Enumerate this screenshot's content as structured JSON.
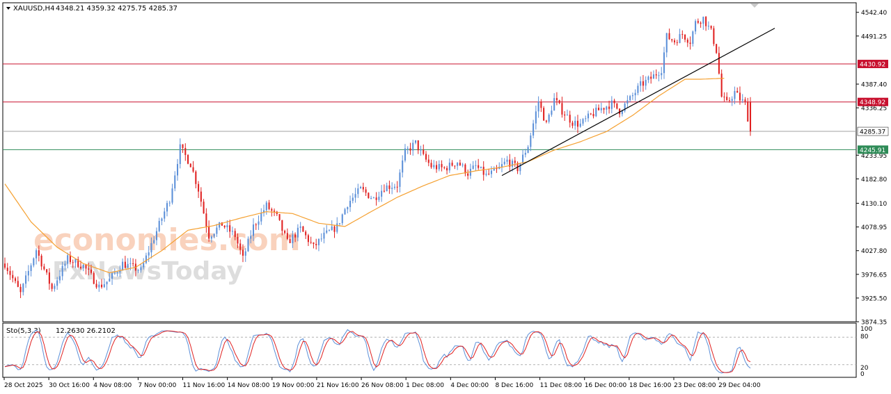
{
  "header": {
    "symbol": "XAUUSD,H4",
    "ohlc": "4348.21 4359.32 4275.75 4285.37"
  },
  "indicator": {
    "label": "Sto(5,3,3)",
    "values": "12.2630 26.2102",
    "levels": [
      "100",
      "80",
      "20",
      "0"
    ]
  },
  "watermark": {
    "line1": "economies.com",
    "line2": "FxNewsToday"
  },
  "colors": {
    "bull": "#5b8fd8",
    "bear": "#e02020",
    "ma": "#f5a030",
    "resistance": "#c8102e",
    "support": "#2e8b57",
    "current": "#a0a0a0",
    "trendline": "#000000",
    "stoch_main": "#5b8fd8",
    "stoch_signal": "#e02020"
  },
  "chart_data": {
    "type": "candlestick",
    "timeframe": "H4",
    "ylim": [
      3874.35,
      4563
    ],
    "y_ticks": [
      "4542.40",
      "4491.25",
      "4387.40",
      "4336.25",
      "4233.95",
      "4182.80",
      "4130.10",
      "4078.95",
      "4027.80",
      "3976.65",
      "3925.50",
      "3874.35"
    ],
    "price_labels": [
      {
        "name": "resistance-2",
        "value": 4430.92,
        "text": "4430.92",
        "kind": "resistance"
      },
      {
        "name": "resistance-1",
        "value": 4348.92,
        "text": "4348.92",
        "kind": "resistance"
      },
      {
        "name": "current-price",
        "value": 4285.37,
        "text": "4285.37",
        "kind": "current"
      },
      {
        "name": "support-1",
        "value": 4245.91,
        "text": "4245.91",
        "kind": "support"
      }
    ],
    "x_labels": [
      "28 Oct 2025",
      "30 Oct 16:00",
      "4 Nov 08:00",
      "7 Nov 00:00",
      "11 Nov 16:00",
      "14 Nov 08:00",
      "19 Nov 00:00",
      "21 Nov 16:00",
      "26 Nov 08:00",
      "1 Dec 08:00",
      "4 Dec 00:00",
      "8 Dec 16:00",
      "11 Dec 08:00",
      "16 Dec 00:00",
      "18 Dec 16:00",
      "23 Dec 08:00",
      "29 Dec 04:00"
    ],
    "close_path": [
      [
        0,
        4000
      ],
      [
        6,
        3935
      ],
      [
        12,
        4030
      ],
      [
        18,
        3945
      ],
      [
        24,
        4010
      ],
      [
        30,
        3995
      ],
      [
        36,
        3950
      ],
      [
        40,
        3965
      ],
      [
        45,
        4000
      ],
      [
        52,
        3985
      ],
      [
        58,
        4070
      ],
      [
        63,
        4140
      ],
      [
        67,
        4250
      ],
      [
        71,
        4215
      ],
      [
        74,
        4160
      ],
      [
        78,
        4060
      ],
      [
        83,
        4085
      ],
      [
        88,
        4060
      ],
      [
        91,
        4010
      ],
      [
        95,
        4080
      ],
      [
        100,
        4125
      ],
      [
        104,
        4100
      ],
      [
        108,
        4045
      ],
      [
        113,
        4075
      ],
      [
        118,
        4035
      ],
      [
        122,
        4060
      ],
      [
        127,
        4080
      ],
      [
        131,
        4130
      ],
      [
        136,
        4160
      ],
      [
        141,
        4140
      ],
      [
        145,
        4165
      ],
      [
        150,
        4170
      ],
      [
        153,
        4240
      ],
      [
        157,
        4260
      ],
      [
        160,
        4230
      ],
      [
        163,
        4210
      ],
      [
        168,
        4205
      ],
      [
        173,
        4220
      ],
      [
        177,
        4195
      ],
      [
        180,
        4210
      ],
      [
        184,
        4190
      ],
      [
        188,
        4200
      ],
      [
        192,
        4222
      ],
      [
        196,
        4205
      ],
      [
        200,
        4255
      ],
      [
        204,
        4350
      ],
      [
        207,
        4300
      ],
      [
        210,
        4355
      ],
      [
        213,
        4330
      ],
      [
        217,
        4305
      ],
      [
        220,
        4300
      ],
      [
        224,
        4320
      ],
      [
        228,
        4335
      ],
      [
        232,
        4345
      ],
      [
        235,
        4330
      ],
      [
        239,
        4355
      ],
      [
        243,
        4385
      ],
      [
        247,
        4400
      ],
      [
        251,
        4420
      ],
      [
        253,
        4490
      ],
      [
        256,
        4480
      ],
      [
        259,
        4495
      ],
      [
        262,
        4480
      ],
      [
        264,
        4520
      ],
      [
        267,
        4530
      ],
      [
        270,
        4500
      ],
      [
        272,
        4460
      ],
      [
        274,
        4360
      ],
      [
        276,
        4345
      ],
      [
        279,
        4370
      ],
      [
        281,
        4355
      ],
      [
        283,
        4345
      ],
      [
        285,
        4285.37
      ]
    ],
    "ma_path": [
      [
        0,
        4172
      ],
      [
        10,
        4090
      ],
      [
        20,
        4035
      ],
      [
        30,
        4000
      ],
      [
        40,
        3980
      ],
      [
        50,
        3992
      ],
      [
        60,
        4028
      ],
      [
        70,
        4072
      ],
      [
        80,
        4082
      ],
      [
        90,
        4098
      ],
      [
        100,
        4112
      ],
      [
        110,
        4108
      ],
      [
        120,
        4087
      ],
      [
        130,
        4080
      ],
      [
        140,
        4112
      ],
      [
        150,
        4143
      ],
      [
        160,
        4168
      ],
      [
        170,
        4190
      ],
      [
        180,
        4200
      ],
      [
        190,
        4208
      ],
      [
        200,
        4220
      ],
      [
        210,
        4245
      ],
      [
        220,
        4263
      ],
      [
        230,
        4285
      ],
      [
        240,
        4320
      ],
      [
        250,
        4362
      ],
      [
        260,
        4398
      ],
      [
        266,
        4398
      ],
      [
        275,
        4400
      ]
    ],
    "n_bars": 286,
    "trendline": {
      "from": [
        190,
        4190
      ],
      "to": [
        285,
        4490
      ]
    },
    "stochastic": {
      "main_last": 12.263,
      "signal_last": 26.2102,
      "levels": [
        20,
        80
      ],
      "ylim": [
        0,
        100
      ]
    }
  }
}
